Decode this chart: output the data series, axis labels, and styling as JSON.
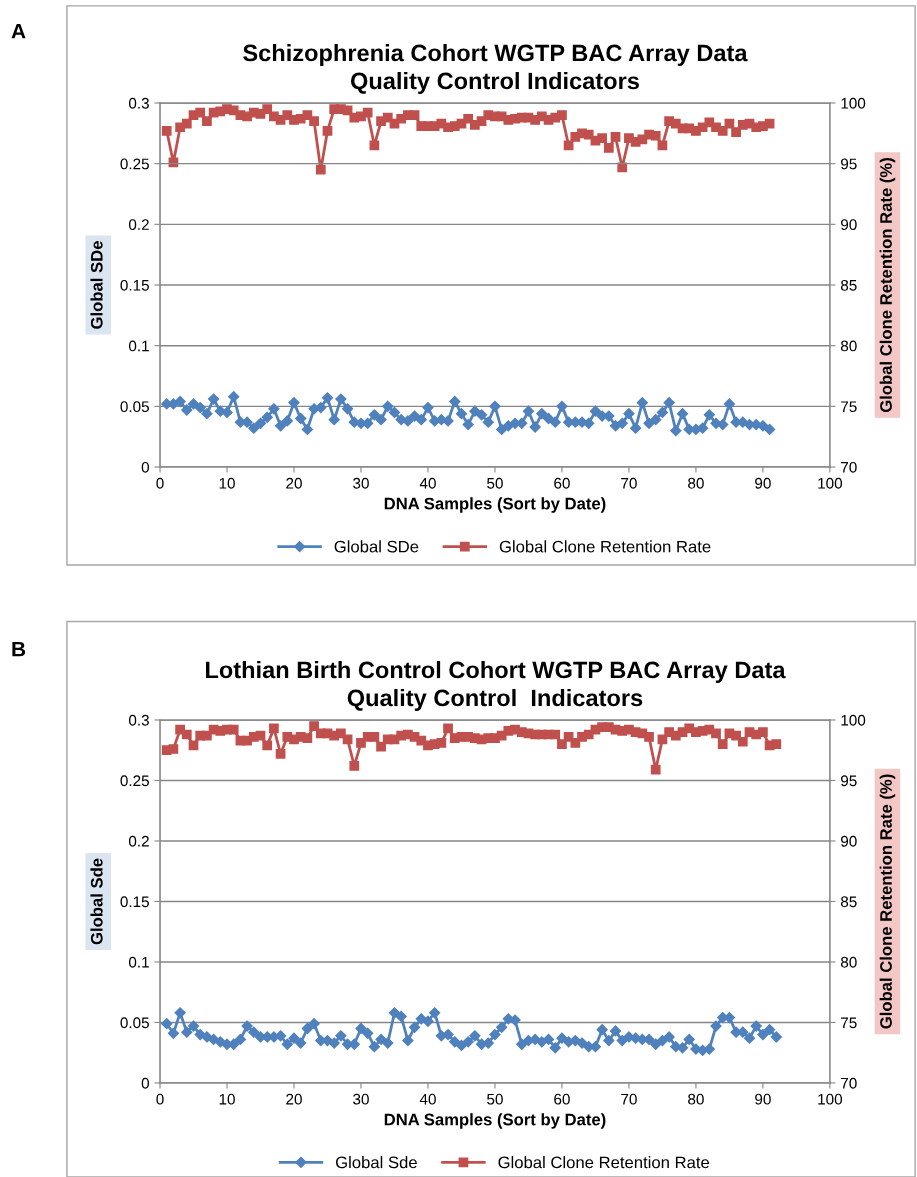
{
  "chart_data": [
    {
      "type": "line",
      "title": "Schizophrenia Cohort WGTP BAC Array Data\nQuality Control Indicators",
      "xlabel": "DNA Samples (Sort by Date)",
      "ylabel": "Global SDe",
      "y2label": "Global Clone Retention Rate (%)",
      "annotations": [
        "A"
      ],
      "x": [
        1,
        2,
        3,
        4,
        5,
        6,
        7,
        8,
        9,
        10,
        11,
        12,
        13,
        14,
        15,
        16,
        17,
        18,
        19,
        20,
        21,
        22,
        23,
        24,
        25,
        26,
        27,
        28,
        29,
        30,
        31,
        32,
        33,
        34,
        35,
        36,
        37,
        38,
        39,
        40,
        41,
        42,
        43,
        44,
        45,
        46,
        47,
        48,
        49,
        50,
        51,
        52,
        53,
        54,
        55,
        56,
        57,
        58,
        59,
        60,
        61,
        62,
        63,
        64,
        65,
        66,
        67,
        68,
        69,
        70,
        71,
        72,
        73,
        74,
        75,
        76,
        77,
        78,
        79,
        80,
        81,
        82,
        83,
        84,
        85,
        86,
        87,
        88,
        89,
        90,
        91
      ],
      "xlim": [
        0,
        100
      ],
      "xticks": [
        0,
        10,
        20,
        30,
        40,
        50,
        60,
        70,
        80,
        90,
        100
      ],
      "ylim": [
        0,
        0.3
      ],
      "yticks": [
        0,
        0.05,
        0.1,
        0.15,
        0.2,
        0.25,
        0.3
      ],
      "y2lim": [
        70,
        100
      ],
      "y2ticks": [
        70,
        75,
        80,
        85,
        90,
        95,
        100
      ],
      "grid": "y",
      "legend": "bottom",
      "line_style": "solid",
      "series": [
        {
          "name": "Global SDe",
          "color": "#4f81bd",
          "marker": "diamond",
          "values": [
            0.052,
            0.052,
            0.054,
            0.047,
            0.052,
            0.049,
            0.044,
            0.056,
            0.046,
            0.045,
            0.058,
            0.037,
            0.037,
            0.032,
            0.036,
            0.041,
            0.048,
            0.034,
            0.038,
            0.053,
            0.04,
            0.031,
            0.048,
            0.049,
            0.057,
            0.039,
            0.056,
            0.048,
            0.037,
            0.036,
            0.036,
            0.043,
            0.039,
            0.05,
            0.045,
            0.039,
            0.038,
            0.042,
            0.039,
            0.049,
            0.038,
            0.039,
            0.038,
            0.054,
            0.044,
            0.035,
            0.046,
            0.043,
            0.037,
            0.05,
            0.031,
            0.034,
            0.036,
            0.036,
            0.046,
            0.033,
            0.044,
            0.04,
            0.037,
            0.05,
            0.037,
            0.037,
            0.037,
            0.036,
            0.046,
            0.042,
            0.042,
            0.034,
            0.036,
            0.044,
            0.032,
            0.053,
            0.036,
            0.039,
            0.045,
            0.053,
            0.03,
            0.044,
            0.031,
            0.031,
            0.032,
            0.043,
            0.036,
            0.035,
            0.052,
            0.037,
            0.037,
            0.035,
            0.035,
            0.034,
            0.031
          ]
        },
        {
          "name": "Global Clone Retention Rate",
          "color": "#c0504d",
          "marker": "square",
          "axis": "y2",
          "values": [
            97.7,
            95.1,
            98.0,
            98.3,
            99.0,
            99.2,
            98.5,
            99.2,
            99.3,
            99.5,
            99.4,
            99.0,
            98.9,
            99.2,
            99.1,
            99.5,
            98.9,
            98.6,
            99.0,
            98.6,
            98.7,
            99.0,
            98.5,
            94.5,
            97.7,
            99.5,
            99.5,
            99.4,
            98.8,
            98.9,
            99.2,
            96.5,
            98.5,
            98.8,
            98.3,
            98.7,
            99.0,
            99.0,
            98.1,
            98.1,
            98.1,
            98.3,
            98.0,
            98.1,
            98.3,
            98.7,
            98.2,
            98.5,
            99.0,
            98.9,
            98.9,
            98.6,
            98.7,
            98.8,
            98.8,
            98.6,
            98.9,
            98.6,
            98.8,
            99.0,
            96.5,
            97.2,
            97.5,
            97.4,
            96.9,
            97.1,
            96.3,
            97.2,
            94.7,
            97.1,
            96.8,
            97.0,
            97.4,
            97.3,
            96.5,
            98.5,
            98.3,
            97.9,
            97.9,
            97.7,
            98.0,
            98.4,
            98.0,
            97.7,
            98.3,
            97.6,
            98.2,
            98.3,
            98.0,
            98.1,
            98.3
          ]
        }
      ]
    },
    {
      "type": "line",
      "title": "Lothian Birth Control Cohort WGTP BAC Array Data\nQuality Control  Indicators",
      "xlabel": "DNA Samples (Sort by Date)",
      "ylabel": "Global Sde",
      "y2label": "Global Clone Retention Rate (%)",
      "annotations": [
        "B"
      ],
      "x": [
        1,
        2,
        3,
        4,
        5,
        6,
        7,
        8,
        9,
        10,
        11,
        12,
        13,
        14,
        15,
        16,
        17,
        18,
        19,
        20,
        21,
        22,
        23,
        24,
        25,
        26,
        27,
        28,
        29,
        30,
        31,
        32,
        33,
        34,
        35,
        36,
        37,
        38,
        39,
        40,
        41,
        42,
        43,
        44,
        45,
        46,
        47,
        48,
        49,
        50,
        51,
        52,
        53,
        54,
        55,
        56,
        57,
        58,
        59,
        60,
        61,
        62,
        63,
        64,
        65,
        66,
        67,
        68,
        69,
        70,
        71,
        72,
        73,
        74,
        75,
        76,
        77,
        78,
        79,
        80,
        81,
        82,
        83,
        84,
        85,
        86,
        87,
        88,
        89,
        90,
        91,
        92
      ],
      "xlim": [
        0,
        100
      ],
      "xticks": [
        0,
        10,
        20,
        30,
        40,
        50,
        60,
        70,
        80,
        90,
        100
      ],
      "ylim": [
        0,
        0.3
      ],
      "yticks": [
        0,
        0.05,
        0.1,
        0.15,
        0.2,
        0.25,
        0.3
      ],
      "y2lim": [
        70,
        100
      ],
      "y2ticks": [
        70,
        75,
        80,
        85,
        90,
        95,
        100
      ],
      "grid": "y",
      "legend": "bottom",
      "line_style": "solid",
      "series": [
        {
          "name": "Global Sde",
          "color": "#4f81bd",
          "marker": "diamond",
          "values": [
            0.049,
            0.041,
            0.058,
            0.042,
            0.047,
            0.04,
            0.038,
            0.036,
            0.034,
            0.032,
            0.032,
            0.036,
            0.047,
            0.042,
            0.038,
            0.038,
            0.038,
            0.039,
            0.032,
            0.037,
            0.033,
            0.045,
            0.049,
            0.035,
            0.035,
            0.033,
            0.039,
            0.032,
            0.032,
            0.045,
            0.041,
            0.03,
            0.036,
            0.033,
            0.058,
            0.055,
            0.035,
            0.046,
            0.053,
            0.051,
            0.058,
            0.039,
            0.04,
            0.034,
            0.031,
            0.034,
            0.039,
            0.032,
            0.033,
            0.04,
            0.046,
            0.053,
            0.052,
            0.032,
            0.035,
            0.036,
            0.034,
            0.036,
            0.029,
            0.037,
            0.034,
            0.035,
            0.033,
            0.03,
            0.03,
            0.044,
            0.035,
            0.043,
            0.035,
            0.038,
            0.037,
            0.036,
            0.036,
            0.032,
            0.035,
            0.038,
            0.03,
            0.029,
            0.036,
            0.028,
            0.027,
            0.028,
            0.047,
            0.054,
            0.054,
            0.042,
            0.042,
            0.037,
            0.047,
            0.04,
            0.044,
            0.038
          ]
        },
        {
          "name": "Global Clone Retention Rate",
          "color": "#c0504d",
          "marker": "square",
          "axis": "y2",
          "values": [
            97.5,
            97.6,
            99.2,
            98.8,
            97.9,
            98.7,
            98.7,
            99.2,
            99.1,
            99.2,
            99.2,
            98.3,
            98.3,
            98.6,
            98.7,
            97.9,
            99.3,
            97.2,
            98.6,
            98.4,
            98.6,
            98.5,
            99.5,
            98.9,
            98.9,
            98.7,
            98.9,
            98.4,
            96.2,
            98.1,
            98.6,
            98.6,
            97.8,
            98.4,
            98.4,
            98.7,
            98.8,
            98.6,
            98.3,
            97.9,
            98.0,
            98.1,
            99.3,
            98.5,
            98.6,
            98.6,
            98.5,
            98.4,
            98.5,
            98.5,
            98.7,
            99.1,
            99.2,
            99.0,
            98.9,
            98.8,
            98.8,
            98.8,
            98.8,
            98.0,
            98.6,
            98.1,
            98.6,
            98.8,
            99.2,
            99.4,
            99.4,
            99.2,
            99.1,
            99.2,
            99.0,
            98.9,
            98.6,
            95.9,
            98.4,
            99.0,
            98.7,
            99.0,
            99.3,
            99.0,
            99.1,
            99.2,
            98.9,
            98.0,
            98.9,
            98.7,
            98.2,
            99.0,
            98.8,
            99.0,
            97.9,
            98.0
          ]
        }
      ]
    }
  ]
}
